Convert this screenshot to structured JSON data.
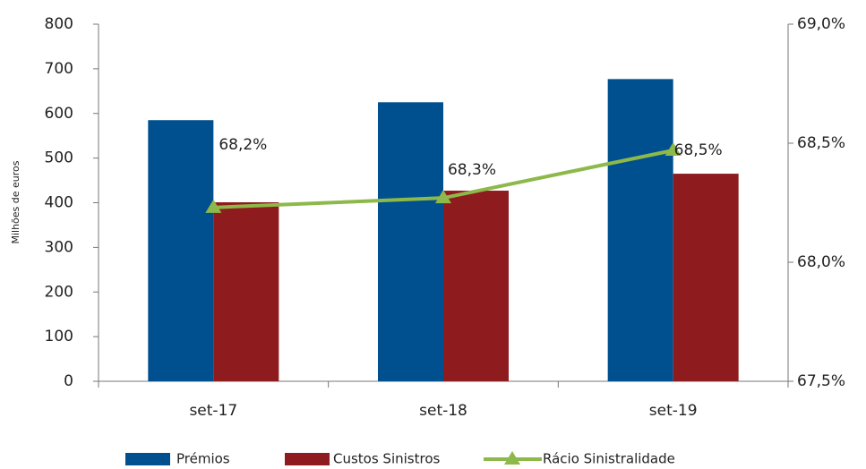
{
  "chart_data": {
    "type": "bar",
    "y_label": "Milhões de euros",
    "categories": [
      "set-17",
      "set-18",
      "set-19"
    ],
    "series": [
      {
        "name": "Prémios",
        "color": "#00508f",
        "values": [
          585,
          625,
          677
        ]
      },
      {
        "name": "Custos Sinistros",
        "color": "#8e1b1e",
        "values": [
          401,
          427,
          465
        ]
      },
      {
        "name": "Rácio Sinistralidade",
        "color": "#8db84a",
        "type": "line",
        "axis": "y2",
        "values": [
          68.23,
          68.27,
          68.47
        ],
        "value_labels": [
          "68,2%",
          "68,3%",
          "68,5%"
        ]
      }
    ],
    "ylim": [
      0,
      800
    ],
    "yticks": [
      0,
      100,
      200,
      300,
      400,
      500,
      600,
      700,
      800
    ],
    "y2lim": [
      67.5,
      69.0
    ],
    "y2ticks": [
      {
        "value": 67.5,
        "label": "67,5%"
      },
      {
        "value": 68.0,
        "label": "68,0%"
      },
      {
        "value": 68.5,
        "label": "68,5%"
      },
      {
        "value": 69.0,
        "label": "69,0%"
      }
    ],
    "legend": "bottom"
  }
}
